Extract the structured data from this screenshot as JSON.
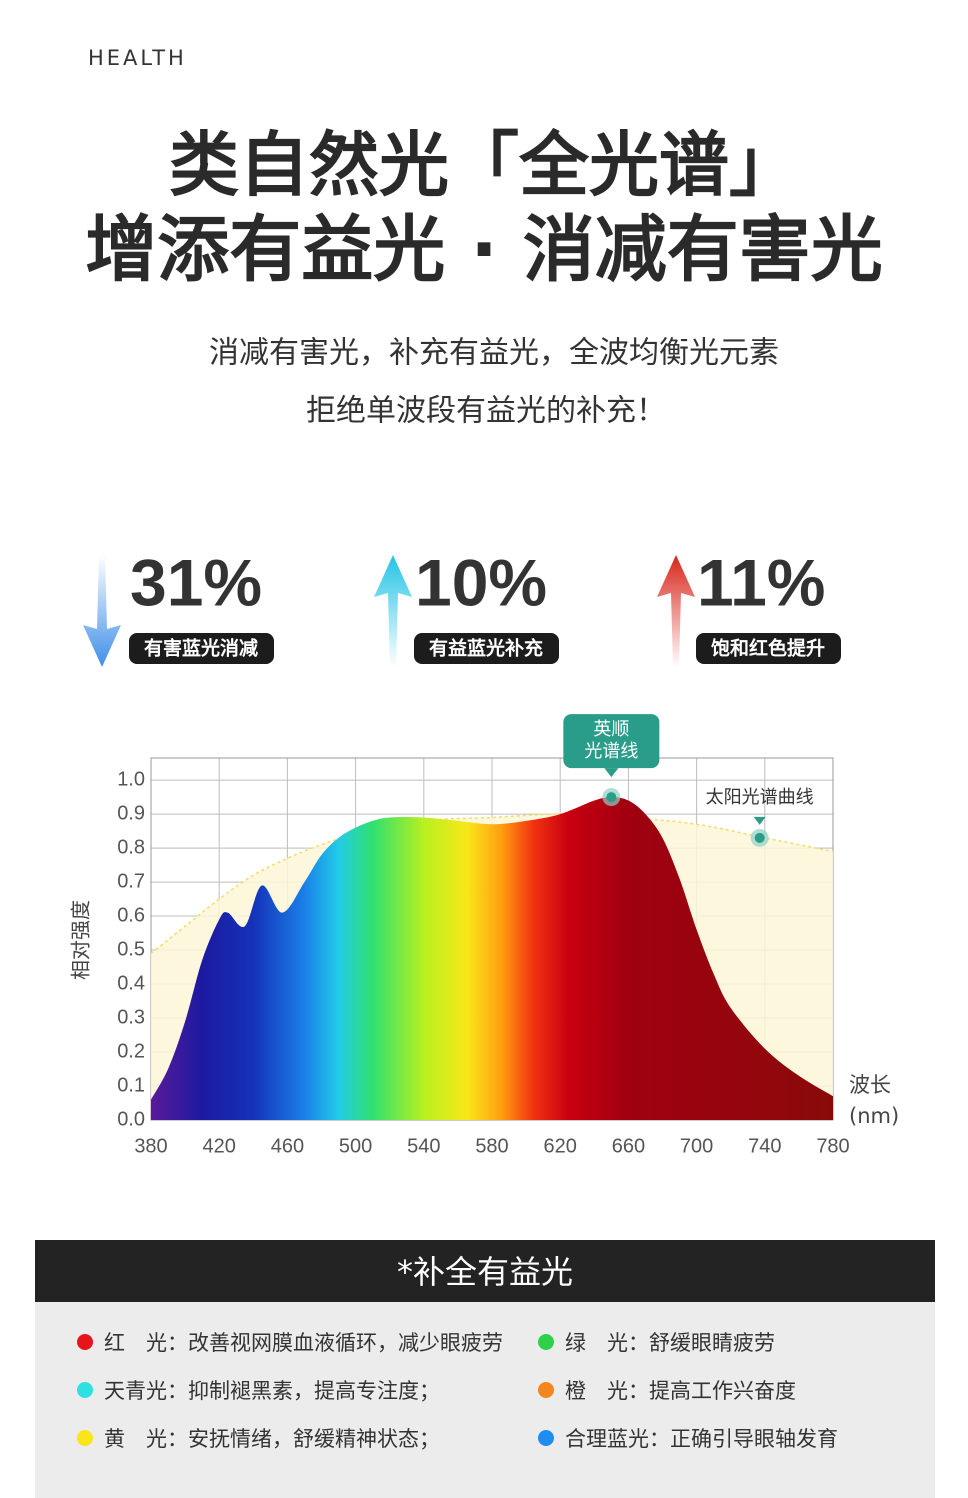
{
  "header": {
    "eyebrow": "HEALTH",
    "title_lines": [
      "类自然光「全光谱」",
      "增添有益光 · 消减有害光"
    ],
    "subtitle_lines": [
      "消减有害光，补充有益光，全波均衡光元素",
      "拒绝单波段有益光的补充！"
    ]
  },
  "stats": [
    {
      "value": "31%",
      "label": "有害蓝光消减",
      "direction": "down",
      "color": "#3d8fe8"
    },
    {
      "value": "10%",
      "label": "有益蓝光补充",
      "direction": "up",
      "color": "#22c3e6"
    },
    {
      "value": "11%",
      "label": "饱和红色提升",
      "direction": "up",
      "color": "#d8261a"
    }
  ],
  "chart_data": {
    "type": "area",
    "ylabel": "相对强度",
    "xlabel_lines": [
      "波长",
      "(nm)"
    ],
    "xlim": [
      380,
      780
    ],
    "ylim": [
      0,
      1.065
    ],
    "xticks": [
      380,
      420,
      460,
      500,
      540,
      580,
      620,
      660,
      700,
      740,
      780
    ],
    "yticks": [
      {
        "value": 0,
        "label": "0.0"
      },
      0.1,
      0.2,
      0.3,
      0.4,
      0.5,
      0.6,
      0.7,
      0.8,
      0.9,
      {
        "value": 1,
        "label": "1.0"
      }
    ],
    "grid": true,
    "series": [
      {
        "x": [
          380,
          400,
          420,
          440,
          460,
          480,
          500,
          540,
          580,
          620,
          660,
          700,
          740,
          780
        ],
        "values": [
          0.49,
          0.57,
          0.65,
          0.72,
          0.77,
          0.81,
          0.84,
          0.88,
          0.89,
          0.9,
          0.89,
          0.87,
          0.83,
          0.79
        ],
        "color": "#f3dc6a",
        "fill": "#fdf6d8",
        "style": "dashed"
      },
      {
        "x": [
          380,
          390,
          400,
          410,
          420,
          425,
          435,
          445,
          457,
          470,
          480,
          490,
          500,
          510,
          520,
          540,
          560,
          580,
          600,
          620,
          640,
          650,
          660,
          670,
          680,
          690,
          700,
          710,
          720,
          740,
          760,
          780
        ],
        "values": [
          0.06,
          0.15,
          0.29,
          0.47,
          0.59,
          0.61,
          0.57,
          0.69,
          0.61,
          0.7,
          0.78,
          0.83,
          0.86,
          0.88,
          0.89,
          0.89,
          0.88,
          0.87,
          0.88,
          0.9,
          0.94,
          0.95,
          0.94,
          0.9,
          0.83,
          0.71,
          0.56,
          0.43,
          0.33,
          0.21,
          0.13,
          0.07
        ],
        "fill": "spectrum",
        "style": "solid"
      }
    ],
    "annotations": [
      {
        "text_lines": [
          "英顺",
          "光谱线"
        ],
        "x": 650,
        "y": 0.95,
        "style": "bubble"
      },
      {
        "text_lines": [
          "太阳光谱曲线"
        ],
        "x": 737,
        "y": 0.83,
        "style": "label"
      }
    ]
  },
  "panel": {
    "title": "*补全有益光",
    "items": [
      {
        "color": "#e8141b",
        "label": "红　光：",
        "text": "改善视网膜血液循环，减少眼疲劳"
      },
      {
        "color": "#2fd14a",
        "label": "绿　光：",
        "text": "舒缓眼睛疲劳"
      },
      {
        "color": "#2ee0e0",
        "label": "天青光：",
        "text": "抑制褪黑素，提高专注度；"
      },
      {
        "color": "#f5861f",
        "label": "橙　光：",
        "text": "提高工作兴奋度"
      },
      {
        "color": "#f8e51a",
        "label": "黄　光：",
        "text": "安抚情绪，舒缓精神状态；"
      },
      {
        "color": "#1f8cf0",
        "label": "合理蓝光：",
        "text": "正确引导眼轴发育"
      }
    ]
  }
}
